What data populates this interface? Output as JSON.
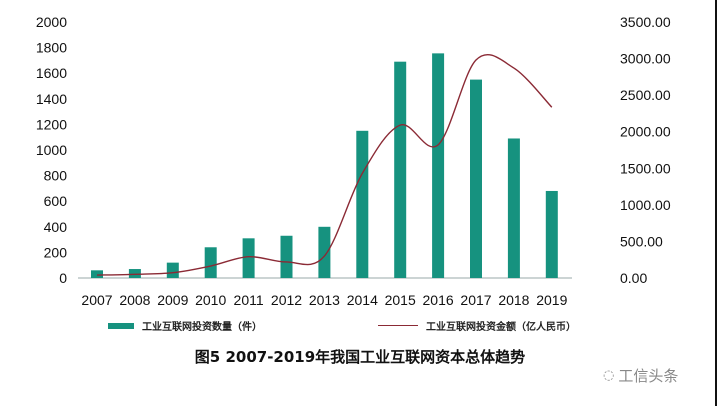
{
  "chart_data": {
    "type": "bar+line",
    "title": "图5 2007-2019年我国工业互联网资本总体趋势",
    "categories": [
      "2007",
      "2008",
      "2009",
      "2010",
      "2011",
      "2012",
      "2013",
      "2014",
      "2015",
      "2016",
      "2017",
      "2018",
      "2019"
    ],
    "series": [
      {
        "name": "工业互联网投资数量（件）",
        "type": "bar",
        "axis": "left",
        "color": "#16927f",
        "values": [
          60,
          70,
          120,
          240,
          310,
          330,
          400,
          1150,
          1690,
          1755,
          1550,
          1090,
          680
        ]
      },
      {
        "name": "工业互联网投资金额（亿人民币）",
        "type": "line",
        "axis": "right",
        "color": "#8b2a35",
        "smooth": true,
        "values": [
          40,
          50,
          72,
          164,
          291,
          219,
          300,
          1430,
          2090,
          1820,
          2980,
          2870,
          2335
        ]
      }
    ],
    "y_left": {
      "range": [
        0,
        2000
      ],
      "ticks": [
        "0",
        "200",
        "400",
        "600",
        "800",
        "1000",
        "1200",
        "1400",
        "1600",
        "1800",
        "2000"
      ]
    },
    "y_right": {
      "range": [
        0,
        3500
      ],
      "ticks": [
        "0.00",
        "500.00",
        "1000.00",
        "1500.00",
        "2000.00",
        "2500.00",
        "3000.00",
        "3500.00"
      ]
    },
    "grid": false,
    "legend_position": "bottom"
  },
  "watermark": "工信头条"
}
